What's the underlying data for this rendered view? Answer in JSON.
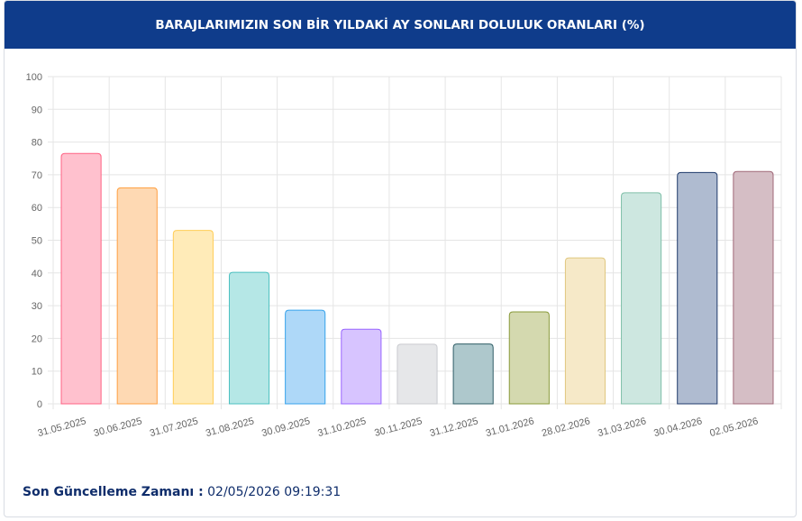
{
  "header": {
    "title": "BARAJLARIMIZIN SON BİR YILDAKİ AY SONLARI DOLULUK ORANLARI (%)"
  },
  "chart_data": {
    "type": "bar",
    "categories": [
      "31.05.2025",
      "30.06.2025",
      "31.07.2025",
      "31.08.2025",
      "30.09.2025",
      "31.10.2025",
      "30.11.2025",
      "31.12.2025",
      "31.01.2026",
      "28.02.2026",
      "31.03.2026",
      "30.04.2026",
      "02.05.2026"
    ],
    "values": [
      76.5,
      66,
      53,
      40.2,
      28.6,
      22.8,
      18.2,
      18.3,
      28.1,
      44.6,
      64.5,
      70.7,
      71.0
    ],
    "colors": [
      "#ffc1ce",
      "#fed9b3",
      "#ffebb8",
      "#b5e7e6",
      "#aed8f8",
      "#d7c4ff",
      "#e6e7e9",
      "#aec8cc",
      "#d4d9af",
      "#f6e9c8",
      "#cde7e0",
      "#afbbd0",
      "#d5bec5"
    ],
    "border_colors": [
      "#ff6384",
      "#ff9f40",
      "#ffcd56",
      "#4bc0c0",
      "#36a2eb",
      "#9966ff",
      "#c9cbcf",
      "#2f5d66",
      "#8a9a3a",
      "#e0c77f",
      "#7fbfa8",
      "#1f3a6b",
      "#a06878"
    ],
    "ylim": [
      0,
      100
    ],
    "yticks": [
      0,
      10,
      20,
      30,
      40,
      50,
      60,
      70,
      80,
      90,
      100
    ],
    "grid": true
  },
  "footer": {
    "label": "Son Güncelleme Zamanı :",
    "value": "02/05/2026 09:19:31"
  }
}
